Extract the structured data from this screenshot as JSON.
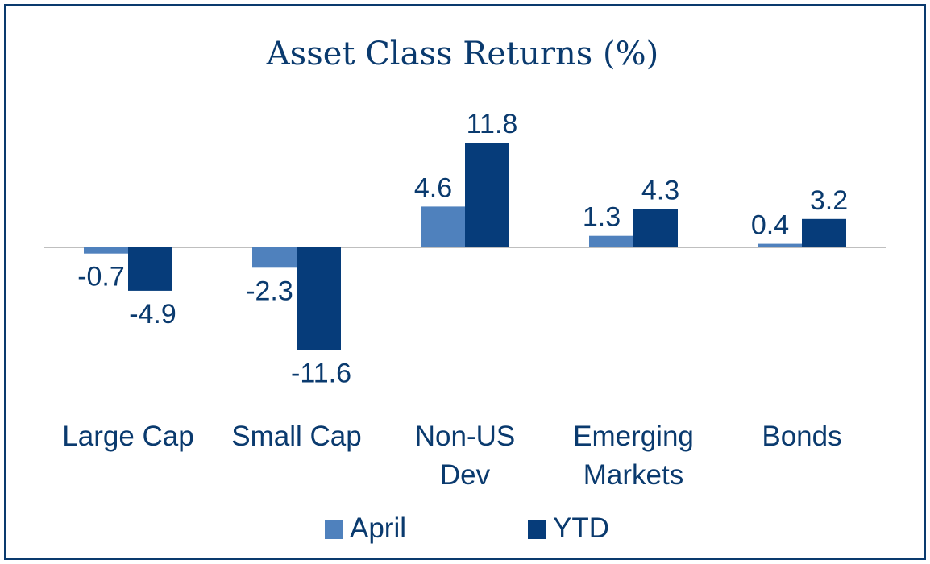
{
  "chart_data": {
    "type": "bar",
    "title": "Asset Class Returns (%)",
    "categories": [
      "Large Cap",
      "Small Cap",
      "Non-US Dev",
      "Emerging Markets",
      "Bonds"
    ],
    "category_lines": [
      [
        "Large Cap"
      ],
      [
        "Small Cap"
      ],
      [
        "Non-US",
        "Dev"
      ],
      [
        "Emerging",
        "Markets"
      ],
      [
        "Bonds"
      ]
    ],
    "series": [
      {
        "name": "April",
        "values": [
          -0.7,
          -2.3,
          4.6,
          1.3,
          0.4
        ],
        "labels": [
          "-0.7",
          "-2.3",
          "4.6",
          "1.3",
          "0.4"
        ],
        "color": "#4f81bd"
      },
      {
        "name": "YTD",
        "values": [
          -4.9,
          -11.6,
          11.8,
          4.3,
          3.2
        ],
        "labels": [
          "-4.9",
          "-11.6",
          "11.8",
          "4.3",
          "3.2"
        ],
        "color": "#063c7a"
      }
    ],
    "xlabel": "",
    "ylabel": "",
    "ylim": [
      -12,
      12
    ],
    "grid": false,
    "legend": "bottom-center"
  },
  "colors": {
    "frame": "#0a3a6e",
    "text": "#0a3a6e",
    "axis": "#bfbfbf"
  }
}
